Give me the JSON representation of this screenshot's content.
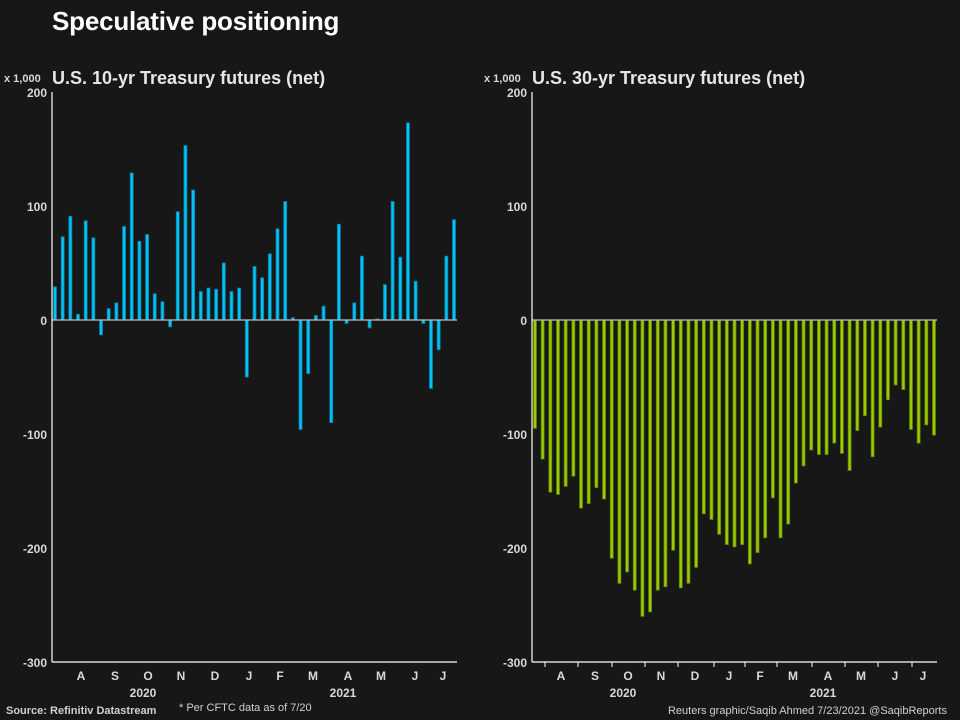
{
  "title": "Speculative positioning",
  "colors": {
    "background": "#171717",
    "axis": "#ffffff",
    "zero_line": "#bdbdbd",
    "text": "#e6e6e6",
    "bar_10yr_fill": "#00c3f5",
    "bar_10yr_stroke": "#0a7fa6",
    "bar_30yr_fill": "#9acd00",
    "bar_30yr_stroke": "#5f7f00"
  },
  "footer": {
    "source": "Source: Refinitiv Datastream",
    "note": "* Per CFTC data as of 7/20",
    "credit": "Reuters graphic/Saqib Ahmed 7/23/2021 @SaqibReports"
  },
  "chart_data": [
    {
      "type": "bar",
      "title": "U.S. 10-yr Treasury futures (net)",
      "ylabel": "x 1,000",
      "xlabel": "",
      "ylim": [
        -300,
        200
      ],
      "yticks": [
        200,
        100,
        0,
        -100,
        -200,
        -300
      ],
      "ytick_labels": [
        "200",
        "100",
        "0",
        "-100",
        "-200",
        "-300"
      ],
      "month_labels": [
        "A",
        "S",
        "O",
        "N",
        "D",
        "J",
        "F",
        "M",
        "A",
        "M",
        "J",
        "J"
      ],
      "year_labels": [
        "2020",
        "2021"
      ],
      "x_ticks_visible": false,
      "grid": false,
      "frequency": "weekly",
      "values": [
        29,
        73,
        91,
        5,
        87,
        72,
        -13,
        10,
        15,
        82,
        129,
        69,
        75,
        23,
        16,
        -6,
        95,
        153,
        114,
        25,
        28,
        27,
        50,
        25,
        28,
        -50,
        47,
        37,
        58,
        80,
        104,
        2,
        -96,
        -47,
        4,
        12,
        -90,
        84,
        -3,
        15,
        56,
        -7,
        1,
        31,
        104,
        55,
        173,
        34,
        -3,
        -60,
        -26,
        56,
        88
      ]
    },
    {
      "type": "bar",
      "title": "U.S. 30-yr Treasury futures (net)",
      "ylabel": "x 1,000",
      "xlabel": "",
      "ylim": [
        -300,
        200
      ],
      "yticks": [
        200,
        100,
        0,
        -100,
        -200,
        -300
      ],
      "ytick_labels": [
        "200",
        "100",
        "0",
        "-100",
        "-200",
        "-300"
      ],
      "month_labels": [
        "A",
        "S",
        "O",
        "N",
        "D",
        "J",
        "F",
        "M",
        "A",
        "M",
        "J",
        "J"
      ],
      "year_labels": [
        "2020",
        "2021"
      ],
      "x_ticks_visible": true,
      "grid": false,
      "frequency": "weekly",
      "values": [
        -95,
        -122,
        -151,
        -153,
        -146,
        -137,
        -165,
        -161,
        -147,
        -157,
        -209,
        -231,
        -221,
        -237,
        -260,
        -256,
        -237,
        -234,
        -202,
        -235,
        -231,
        -217,
        -170,
        -175,
        -188,
        -197,
        -199,
        -197,
        -214,
        -204,
        -191,
        -156,
        -191,
        -179,
        -143,
        -128,
        -114,
        -118,
        -118,
        -108,
        -117,
        -132,
        -97,
        -84,
        -120,
        -94,
        -70,
        -57,
        -61,
        -96,
        -108,
        -92,
        -101
      ]
    }
  ]
}
